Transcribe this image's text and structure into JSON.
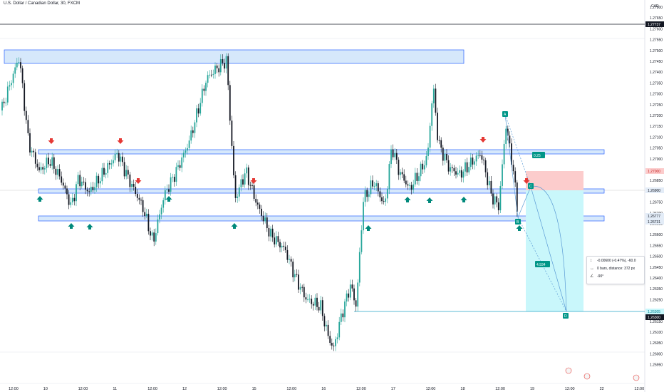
{
  "header": {
    "symbol_title": "U.S. Dollar / Canadian Dollar, 30, FXCM",
    "currency": "CAD"
  },
  "price_axis": {
    "labels": [
      "1.27800",
      "1.27650",
      "1.27600",
      "1.27550",
      "1.27500",
      "1.27450",
      "1.27400",
      "1.27350",
      "1.27300",
      "1.27250",
      "1.27200",
      "1.27150",
      "1.27100",
      "1.27050",
      "1.27000",
      "1.26950",
      "1.26850",
      "1.26800",
      "1.26750",
      "1.26700",
      "1.26650",
      "1.26600",
      "1.26550",
      "1.26500",
      "1.26450",
      "1.26400",
      "1.26350",
      "1.26250",
      "1.26200",
      "1.26150",
      "1.26100",
      "1.26050",
      "1.26000",
      "1.25950"
    ],
    "tags": {
      "last": "1.27737",
      "red": "1.27000",
      "mid": "1.26900",
      "b": "1.26777",
      "b2": "1.26731",
      "tp1": "1.26305",
      "tp2": "1.26300"
    }
  },
  "time_axis": {
    "labels": [
      "12:00",
      "10",
      "12:00",
      "11",
      "12:00",
      "12",
      "12:00",
      "15",
      "12:00",
      "16",
      "12:00",
      "17",
      "12:00",
      "18",
      "12:00",
      "19",
      "12:00",
      "22",
      "12:00"
    ]
  },
  "drawing": {
    "fib_label": "0.25",
    "point_a": "A",
    "point_b": "B",
    "point_c": "C",
    "point_d": "D",
    "projection_value": "4.934"
  },
  "measure": {
    "price_range": "-0.00600 (-0.47%), -60.0",
    "bars_distance": "0 bars, distance: 372 px",
    "angle": "-90°"
  },
  "colors": {
    "up": "#26a69a",
    "down": "#131722",
    "zone_fill": "#d6e8fb",
    "zone_stroke": "#2962ff",
    "sell_arrow": "#e53935",
    "buy_arrow": "#00897b",
    "target_fill": "#c9f7fb",
    "stop_fill": "#fccccc",
    "pattern_line": "#5b9bd5"
  },
  "icons": [
    "down-arrow-icon",
    "up-arrow-icon",
    "price-range-icon",
    "bars-distance-icon",
    "angle-icon",
    "news-flag-icon"
  ]
}
